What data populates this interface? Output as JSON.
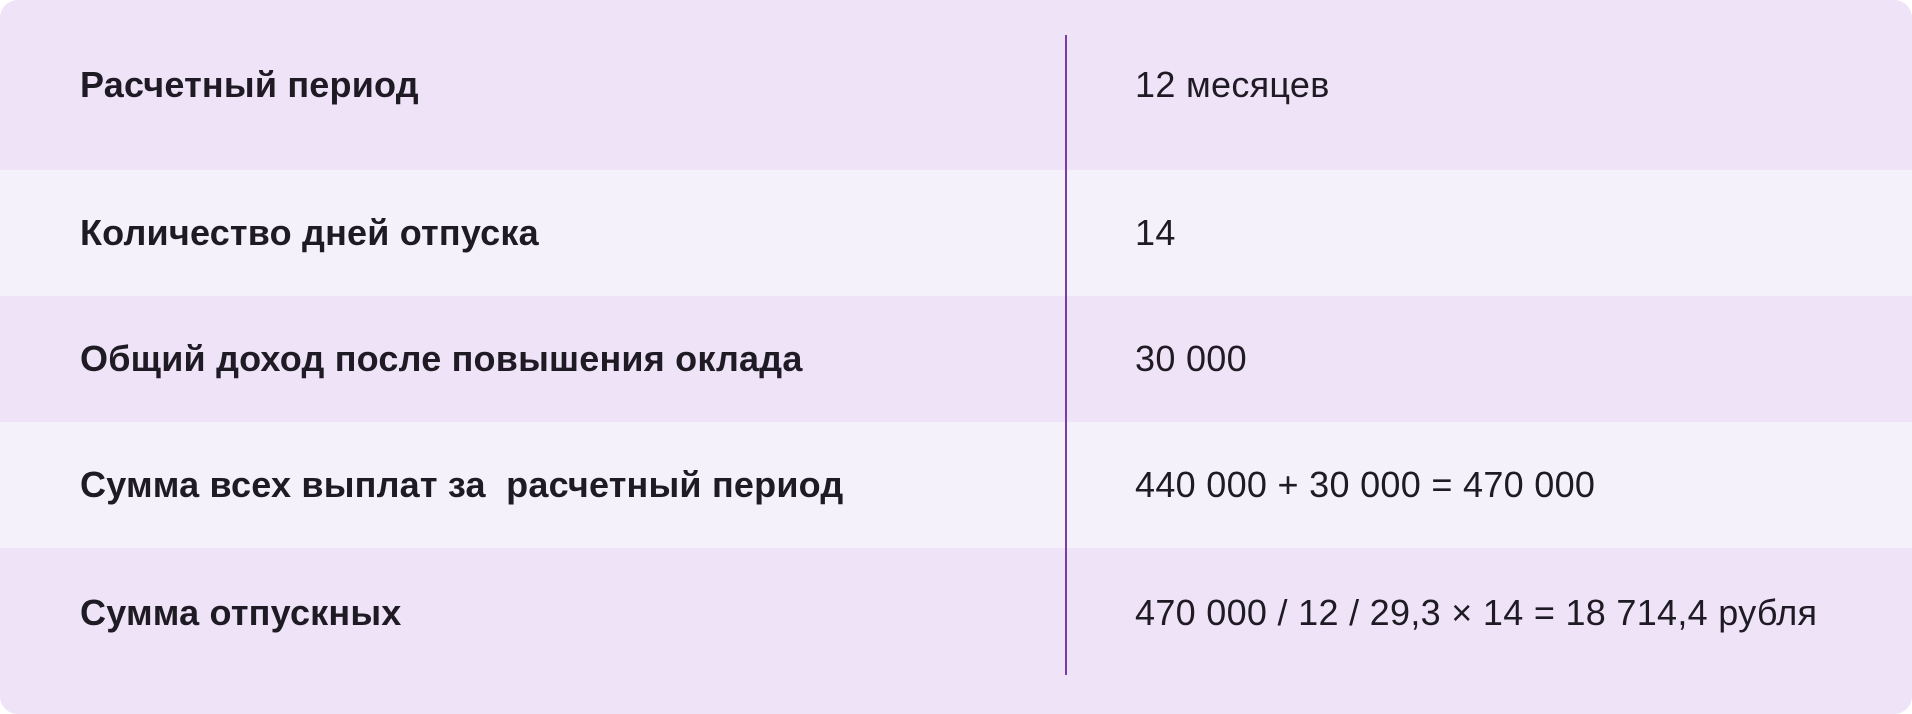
{
  "table": {
    "rows": [
      {
        "label": "Расчетный период",
        "value": "12 месяцев"
      },
      {
        "label": "Количество дней отпуска",
        "value": "14"
      },
      {
        "label": "Общий доход после повышения оклада",
        "value": "30 000"
      },
      {
        "label": "Сумма всех выплат за  расчетный период",
        "value": "440 000 + 30 000 = 470 000"
      },
      {
        "label": "Сумма отпускных",
        "value": "470 000 / 12 / 29,3 × 14 = 18 714,4 рубля"
      }
    ]
  },
  "colors": {
    "row_dark": "#efe3f8",
    "row_light": "#f4f1fa",
    "divider": "#7a3da6",
    "text": "#1f1b24"
  }
}
